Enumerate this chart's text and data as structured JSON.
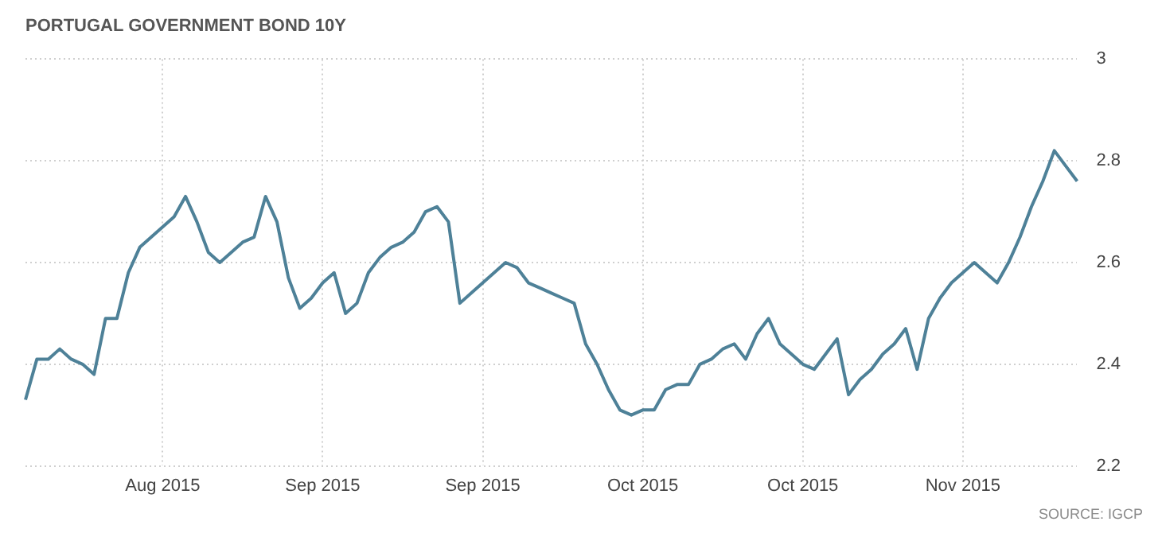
{
  "chart_data": {
    "type": "line",
    "title": "PORTUGAL GOVERNMENT BOND 10Y",
    "categories": [
      null,
      null,
      null,
      null,
      null,
      null,
      null,
      null,
      null,
      null,
      null,
      null,
      "Aug 2015",
      null,
      null,
      null,
      null,
      null,
      null,
      null,
      null,
      null,
      null,
      null,
      null,
      null,
      "Sep 2015",
      null,
      null,
      null,
      null,
      null,
      null,
      null,
      null,
      null,
      null,
      null,
      null,
      null,
      "Sep 2015",
      null,
      null,
      null,
      null,
      null,
      null,
      null,
      null,
      null,
      null,
      null,
      null,
      null,
      "Oct 2015",
      null,
      null,
      null,
      null,
      null,
      null,
      null,
      null,
      null,
      null,
      null,
      null,
      null,
      "Oct 2015",
      null,
      null,
      null,
      null,
      null,
      null,
      null,
      null,
      null,
      null,
      null,
      null,
      null,
      "Nov 2015",
      null,
      null,
      null,
      null,
      null,
      null,
      null,
      null,
      null,
      null
    ],
    "series": [
      {
        "color": "#4e8198",
        "values": [
          2.33,
          2.41,
          2.41,
          2.43,
          2.41,
          2.4,
          2.38,
          2.49,
          2.49,
          2.58,
          2.63,
          2.65,
          2.67,
          2.69,
          2.73,
          2.68,
          2.62,
          2.6,
          2.62,
          2.64,
          2.65,
          2.73,
          2.68,
          2.57,
          2.51,
          2.53,
          2.56,
          2.58,
          2.5,
          2.52,
          2.58,
          2.61,
          2.63,
          2.64,
          2.66,
          2.7,
          2.71,
          2.68,
          2.52,
          2.54,
          2.56,
          2.58,
          2.6,
          2.59,
          2.56,
          2.55,
          2.54,
          2.53,
          2.52,
          2.44,
          2.4,
          2.35,
          2.31,
          2.3,
          2.31,
          2.31,
          2.35,
          2.36,
          2.36,
          2.4,
          2.41,
          2.43,
          2.44,
          2.41,
          2.46,
          2.49,
          2.44,
          2.42,
          2.4,
          2.39,
          2.42,
          2.45,
          2.34,
          2.37,
          2.39,
          2.42,
          2.44,
          2.47,
          2.39,
          2.49,
          2.53,
          2.56,
          2.58,
          2.6,
          2.58,
          2.56,
          2.6,
          2.65,
          2.71,
          2.76,
          2.82,
          2.79,
          2.76
        ]
      }
    ],
    "ylim": [
      2.2,
      3
    ],
    "yticks": [
      2.2,
      2.4,
      2.6,
      2.8,
      3
    ],
    "grid": true,
    "legend": false,
    "marker": "none",
    "line_style": "solid",
    "annotations": [
      "SOURCE: IGCP"
    ]
  }
}
